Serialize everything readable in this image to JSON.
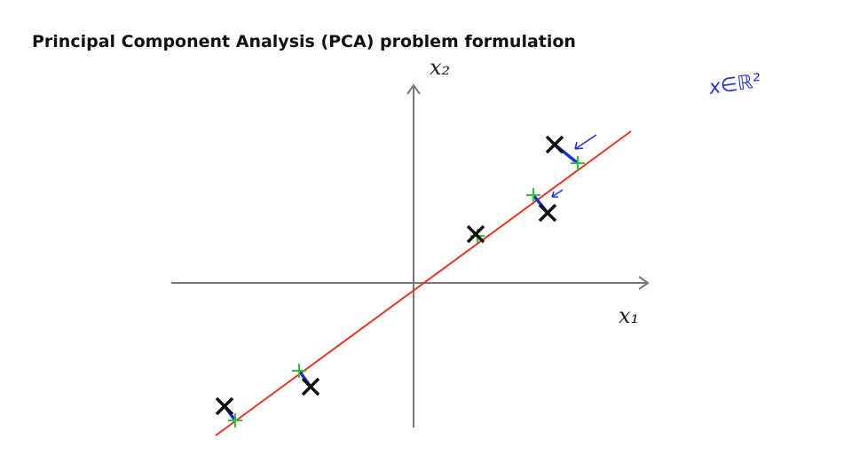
{
  "title": "Principal Component Analysis (PCA) problem formulation",
  "axes": {
    "x_label": "x₁",
    "y_label": "x₂"
  },
  "annotation": "x∈ℝ²"
}
